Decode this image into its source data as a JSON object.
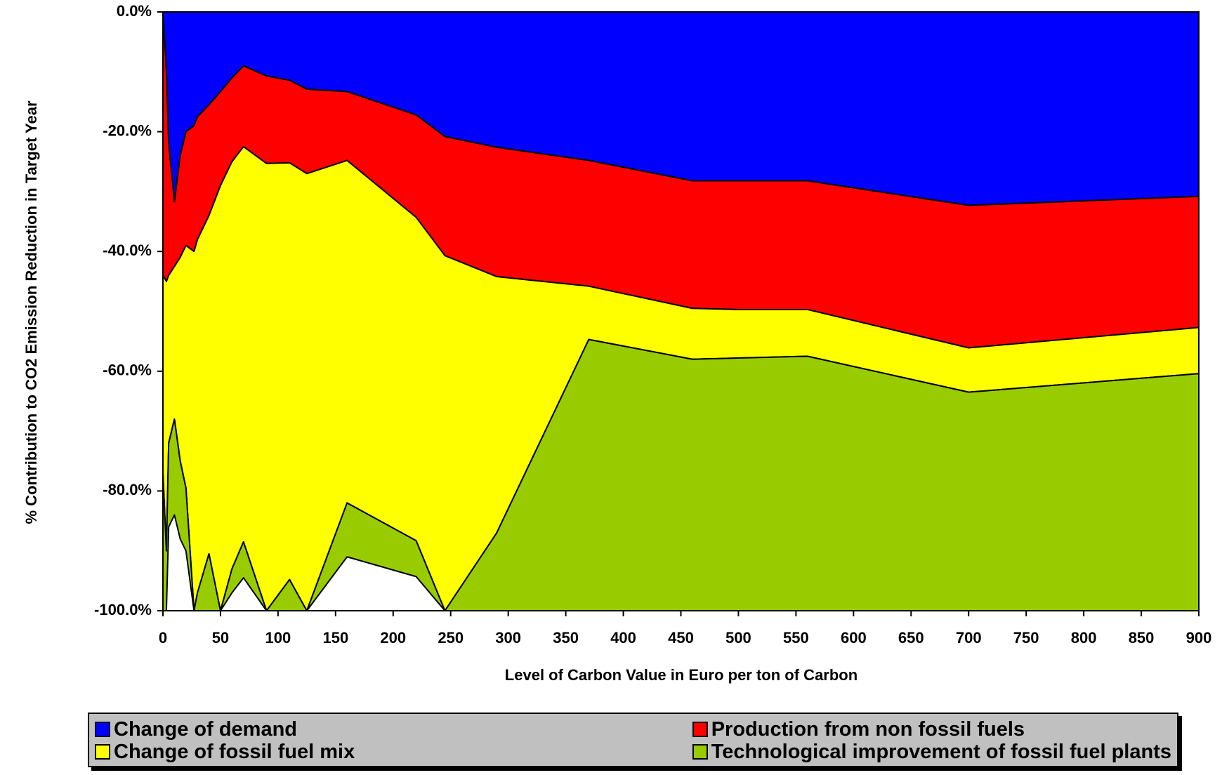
{
  "chart_data": {
    "type": "stacked_area",
    "x_label": "Level of Carbon Value in Euro per ton of Carbon",
    "y_label": "% Contribution to CO2 Emission Reduction in Target Year",
    "x": [
      0,
      3,
      5,
      10,
      15,
      20,
      27,
      30,
      40,
      50,
      60,
      70,
      90,
      110,
      125,
      160,
      220,
      245,
      290,
      370,
      460,
      500,
      560,
      700,
      900
    ],
    "series": [
      {
        "name": "Change of demand",
        "color": "#0000ff",
        "values": [
          0,
          -10,
          -22,
          -31.7,
          -24,
          -20,
          -19,
          -17.5,
          -15.5,
          -13.3,
          -11,
          -9,
          -10.7,
          -11.4,
          -12.9,
          -13.3,
          -17.2,
          -20.8,
          -22.6,
          -24.8,
          -28.2,
          -28.2,
          -28.2,
          -32.3,
          -30.8
        ]
      },
      {
        "name": "Production from non fossil fuels",
        "color": "#ff0000",
        "values": [
          -44,
          -35,
          -22,
          -10.8,
          -17,
          -19,
          -21,
          -20.5,
          -18.5,
          -15.7,
          -14,
          -13.5,
          -14.6,
          -13.8,
          -14.1,
          -11.5,
          -17.1,
          -19.9,
          -21.6,
          -21,
          -21.3,
          -21.5,
          -21.5,
          -23.8,
          -21.9
        ]
      },
      {
        "name": "Change of fossil fuel mix",
        "color": "#ffff00",
        "values": [
          -33,
          -45,
          -28,
          -25.5,
          -34,
          -40.5,
          -60,
          -59,
          -56.5,
          -71,
          -68,
          -66,
          -74.7,
          -69.6,
          -73,
          -57.2,
          -54,
          -59.3,
          -42.8,
          -8.9,
          -8.5,
          -8.1,
          -7.8,
          -7.4,
          -7.7
        ]
      },
      {
        "name": "Technological improvement of fossil fuel plants",
        "color": "#99cc00",
        "values": [
          -23,
          -10,
          -14,
          -16,
          -13,
          -10.5,
          0,
          -3,
          -9.5,
          0,
          -4,
          -6,
          0,
          -5.2,
          0,
          -9,
          -6,
          0,
          -13,
          -45.3,
          -42,
          -42.2,
          -42.5,
          -36.5,
          -39.6
        ]
      }
    ],
    "xlim": [
      0,
      900
    ],
    "xticks": [
      0,
      50,
      100,
      150,
      200,
      250,
      300,
      350,
      400,
      450,
      500,
      550,
      600,
      650,
      700,
      750,
      800,
      850,
      900
    ],
    "ylim": [
      -100,
      0
    ],
    "yticks": [
      {
        "value": -100,
        "label": "-100.0%"
      },
      {
        "value": -80,
        "label": "-80.0%"
      },
      {
        "value": -60,
        "label": "-60.0%"
      },
      {
        "value": -40,
        "label": "-40.0%"
      },
      {
        "value": -20,
        "label": "-20.0%"
      },
      {
        "value": 0,
        "label": "0.0%"
      }
    ],
    "legend": "bottom"
  }
}
